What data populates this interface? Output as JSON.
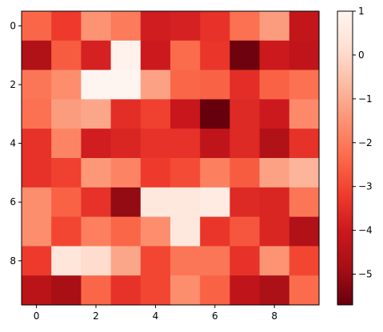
{
  "chart_data": {
    "type": "heatmap",
    "rows": 10,
    "cols": 10,
    "values": [
      [
        -2.4,
        -3.2,
        -1.5,
        -2.0,
        -3.9,
        -3.8,
        -3.4,
        -2.2,
        -1.3,
        -4.2
      ],
      [
        -4.6,
        -2.6,
        -3.8,
        0.9,
        -4.0,
        -2.3,
        -3.3,
        -5.6,
        -4.0,
        -4.3
      ],
      [
        -2.1,
        -1.6,
        1.0,
        1.0,
        -1.2,
        -2.4,
        -2.5,
        -3.5,
        -2.5,
        -2.2
      ],
      [
        -2.2,
        -1.3,
        -1.1,
        -3.5,
        -3.1,
        -4.1,
        -5.7,
        -3.6,
        -4.0,
        -1.7
      ],
      [
        -3.4,
        -1.8,
        -3.9,
        -3.7,
        -3.4,
        -3.4,
        -4.3,
        -3.6,
        -4.6,
        -3.4
      ],
      [
        -3.4,
        -3.1,
        -1.4,
        -1.8,
        -3.2,
        -2.9,
        -1.9,
        -2.6,
        -1.2,
        -0.8
      ],
      [
        -1.6,
        -2.5,
        -3.4,
        -5.1,
        0.5,
        0.5,
        0.6,
        -3.6,
        -3.7,
        -2.1
      ],
      [
        -1.6,
        -3.0,
        -1.9,
        -2.4,
        -1.6,
        0.5,
        -3.3,
        -2.7,
        -3.7,
        -4.6
      ],
      [
        -3.2,
        0.4,
        0.1,
        -1.1,
        -3.0,
        -2.1,
        -2.1,
        -3.4,
        -1.5,
        -3.0
      ],
      [
        -4.4,
        -4.8,
        -2.4,
        -3.4,
        -3.0,
        -1.6,
        -2.5,
        -4.3,
        -4.7,
        -2.3
      ]
    ],
    "vmin": -5.7,
    "vmax": 1.0,
    "colormap": "Reds_r",
    "x_ticks": [
      0,
      2,
      4,
      6,
      8
    ],
    "y_ticks": [
      0,
      2,
      4,
      6,
      8
    ],
    "colorbar_ticks": [
      1,
      0,
      -1,
      -2,
      -3,
      -4,
      -5
    ],
    "colorbar_ticks_labels": [
      "1",
      "0",
      "−1",
      "−2",
      "−3",
      "−4",
      "−5"
    ],
    "x_tick_labels": [
      "0",
      "2",
      "4",
      "6",
      "8"
    ],
    "y_tick_labels": [
      "0",
      "2",
      "4",
      "6",
      "8"
    ],
    "title": "",
    "xlabel": "",
    "ylabel": ""
  }
}
